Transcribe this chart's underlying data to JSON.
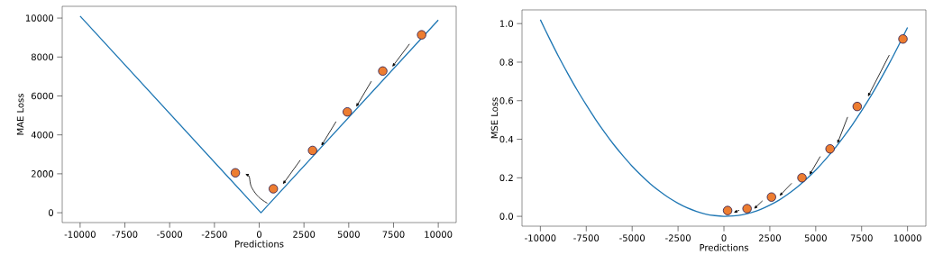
{
  "chart_data": [
    {
      "type": "line",
      "xlabel": "Predictions",
      "ylabel": "MAE Loss",
      "xlim": [
        -11000,
        11000
      ],
      "ylim": [
        -505,
        10605
      ],
      "xticks": [
        -10000,
        -7500,
        -5000,
        -2500,
        0,
        2500,
        5000,
        7500,
        10000
      ],
      "yticks": [
        0,
        2000,
        4000,
        6000,
        8000,
        10000
      ],
      "series": [
        {
          "color": "#1f77b4",
          "x": [
            -10000,
            100,
            10000
          ],
          "values": [
            10100,
            0,
            9900
          ]
        },
        {
          "type": "scatter",
          "color": "#ed7d31",
          "marker": "circle",
          "x": [
            -1330,
            790,
            2980,
            4920,
            6900,
            9070
          ],
          "values": [
            2050,
            1230,
            3200,
            5180,
            7280,
            9140
          ]
        }
      ]
    },
    {
      "type": "line",
      "xlabel": "Predictions",
      "ylabel": "MSE Loss",
      "xlim": [
        -11000,
        11000
      ],
      "ylim": [
        -0.051,
        1.071
      ],
      "xticks": [
        -10000,
        -7500,
        -5000,
        -2500,
        0,
        2500,
        5000,
        7500,
        10000
      ],
      "yticks": [
        {
          "value": 0,
          "label": "0.0"
        },
        {
          "value": 0.2,
          "label": "0.2"
        },
        {
          "value": 0.4,
          "label": "0.4"
        },
        {
          "value": 0.6,
          "label": "0.6"
        },
        {
          "value": 0.8,
          "label": "0.8"
        },
        {
          "value": 1,
          "label": "1.0"
        }
      ],
      "series": [
        {
          "color": "#1f77b4",
          "x": [
            -10000,
            -9500,
            -9000,
            -8500,
            -8000,
            -7500,
            -7000,
            -6500,
            -6000,
            -5500,
            -5000,
            -4500,
            -4000,
            -3500,
            -3000,
            -2500,
            -2000,
            -1500,
            -1000,
            -500,
            0,
            500,
            1000,
            1500,
            2000,
            2500,
            3000,
            3500,
            4000,
            4500,
            5000,
            5500,
            6000,
            6500,
            7000,
            7500,
            8000,
            8500,
            9000,
            9500,
            10000
          ],
          "values": [
            1.02,
            0.922,
            0.828,
            0.74,
            0.656,
            0.578,
            0.504,
            0.436,
            0.372,
            0.314,
            0.26,
            0.212,
            0.168,
            0.13,
            0.096,
            0.068,
            0.044,
            0.026,
            0.012,
            0.004,
            0.0,
            0.002,
            0.008,
            0.02,
            0.036,
            0.058,
            0.084,
            0.116,
            0.152,
            0.194,
            0.24,
            0.292,
            0.348,
            0.41,
            0.476,
            0.548,
            0.624,
            0.706,
            0.792,
            0.884,
            0.98
          ]
        },
        {
          "type": "scatter",
          "color": "#ed7d31",
          "marker": "circle",
          "x": [
            200,
            1260,
            2590,
            4250,
            5780,
            7260,
            9750
          ],
          "values": [
            0.03,
            0.04,
            0.1,
            0.2,
            0.35,
            0.57,
            0.92
          ]
        }
      ]
    }
  ]
}
